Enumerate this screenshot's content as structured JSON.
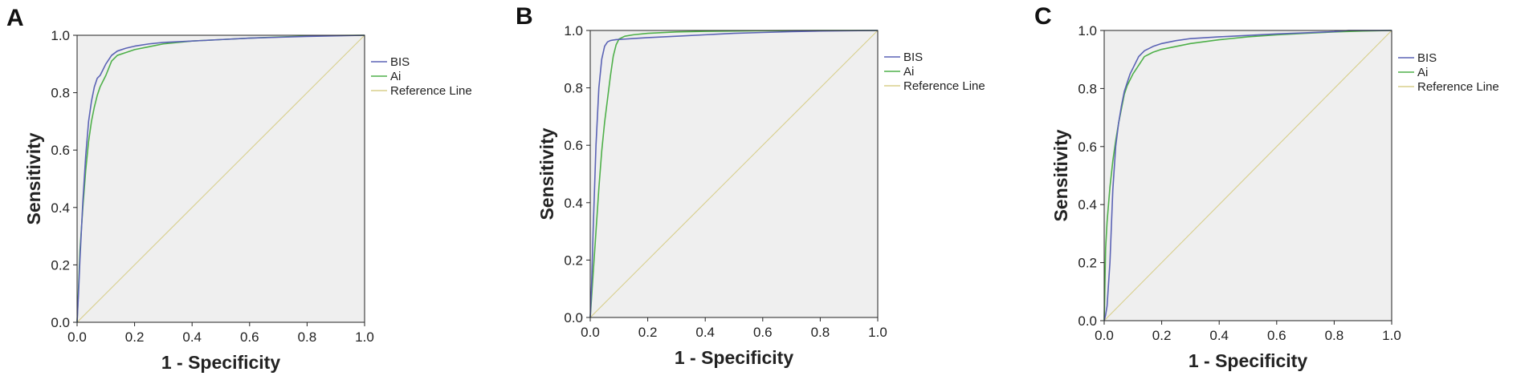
{
  "colors": {
    "plot_background": "#efefef",
    "bis": "#5b63b5",
    "ai": "#4fb04a",
    "reference": "#d8cf8c",
    "frame": "#222222"
  },
  "panels": [
    {
      "letter": "A"
    },
    {
      "letter": "B"
    },
    {
      "letter": "C"
    }
  ],
  "chart_data": [
    {
      "type": "line",
      "panel": "A",
      "xlabel": "1 - Specificity",
      "ylabel": "Sensitivity",
      "xlim": [
        0,
        1
      ],
      "ylim": [
        0,
        1
      ],
      "xticks": [
        "0.0",
        "0.2",
        "0.4",
        "0.6",
        "0.8",
        "1.0"
      ],
      "yticks": [
        "0.0",
        "0.2",
        "0.4",
        "0.6",
        "0.8",
        "1.0"
      ],
      "legend": {
        "placement": "right",
        "entries": [
          "BIS",
          "Ai",
          "Reference Line"
        ]
      },
      "series": [
        {
          "name": "BIS",
          "color": "#5b63b5",
          "x": [
            0,
            0.005,
            0.01,
            0.02,
            0.03,
            0.04,
            0.05,
            0.06,
            0.07,
            0.08,
            0.09,
            0.1,
            0.12,
            0.14,
            0.17,
            0.2,
            0.25,
            0.3,
            0.4,
            0.5,
            0.6,
            0.7,
            0.8,
            0.9,
            1
          ],
          "y": [
            0,
            0.1,
            0.22,
            0.42,
            0.58,
            0.7,
            0.77,
            0.82,
            0.85,
            0.86,
            0.88,
            0.9,
            0.93,
            0.945,
            0.955,
            0.962,
            0.97,
            0.975,
            0.98,
            0.985,
            0.99,
            0.993,
            0.996,
            0.998,
            1
          ]
        },
        {
          "name": "Ai",
          "color": "#4fb04a",
          "x": [
            0,
            0.005,
            0.01,
            0.02,
            0.03,
            0.04,
            0.05,
            0.06,
            0.07,
            0.08,
            0.09,
            0.1,
            0.12,
            0.14,
            0.17,
            0.2,
            0.25,
            0.3,
            0.4,
            0.5,
            0.6,
            0.7,
            0.8,
            0.9,
            1
          ],
          "y": [
            0,
            0.12,
            0.25,
            0.4,
            0.53,
            0.63,
            0.7,
            0.75,
            0.79,
            0.82,
            0.84,
            0.86,
            0.91,
            0.93,
            0.94,
            0.95,
            0.96,
            0.97,
            0.98,
            0.985,
            0.99,
            0.994,
            0.997,
            0.999,
            1
          ]
        },
        {
          "name": "Reference Line",
          "color": "#d8cf8c",
          "x": [
            0,
            1
          ],
          "y": [
            0,
            1
          ]
        }
      ]
    },
    {
      "type": "line",
      "panel": "B",
      "xlabel": "1 - Specificity",
      "ylabel": "Sensitivity",
      "xlim": [
        0,
        1
      ],
      "ylim": [
        0,
        1
      ],
      "xticks": [
        "0.0",
        "0.2",
        "0.4",
        "0.6",
        "0.8",
        "1.0"
      ],
      "yticks": [
        "0.0",
        "0.2",
        "0.4",
        "0.6",
        "0.8",
        "1.0"
      ],
      "legend": {
        "placement": "right",
        "entries": [
          "BIS",
          "Ai",
          "Reference Line"
        ]
      },
      "series": [
        {
          "name": "BIS",
          "color": "#5b63b5",
          "x": [
            0,
            0.005,
            0.01,
            0.015,
            0.02,
            0.03,
            0.04,
            0.05,
            0.06,
            0.07,
            0.09,
            0.12,
            0.15,
            0.2,
            0.3,
            0.4,
            0.5,
            0.6,
            0.7,
            0.8,
            0.9,
            1
          ],
          "y": [
            0,
            0.12,
            0.3,
            0.45,
            0.6,
            0.8,
            0.9,
            0.945,
            0.96,
            0.965,
            0.968,
            0.97,
            0.972,
            0.975,
            0.98,
            0.985,
            0.99,
            0.993,
            0.996,
            0.998,
            0.999,
            1
          ]
        },
        {
          "name": "Ai",
          "color": "#4fb04a",
          "x": [
            0,
            0.01,
            0.02,
            0.03,
            0.04,
            0.05,
            0.06,
            0.07,
            0.08,
            0.09,
            0.1,
            0.12,
            0.15,
            0.2,
            0.3,
            0.4,
            0.6,
            0.8,
            1
          ],
          "y": [
            0,
            0.15,
            0.3,
            0.45,
            0.58,
            0.68,
            0.76,
            0.84,
            0.91,
            0.95,
            0.97,
            0.98,
            0.985,
            0.99,
            0.995,
            0.997,
            0.999,
            1,
            1
          ]
        },
        {
          "name": "Reference Line",
          "color": "#d8cf8c",
          "x": [
            0,
            1
          ],
          "y": [
            0,
            1
          ]
        }
      ]
    },
    {
      "type": "line",
      "panel": "C",
      "xlabel": "1 - Specificity",
      "ylabel": "Sensitivity",
      "xlim": [
        0,
        1
      ],
      "ylim": [
        0,
        1
      ],
      "xticks": [
        "0.0",
        "0.2",
        "0.4",
        "0.6",
        "0.8",
        "1.0"
      ],
      "yticks": [
        "0.0",
        "0.2",
        "0.4",
        "0.6",
        "0.8",
        "1.0"
      ],
      "legend": {
        "placement": "right",
        "entries": [
          "BIS",
          "Ai",
          "Reference Line"
        ]
      },
      "series": [
        {
          "name": "BIS",
          "color": "#5b63b5",
          "x": [
            0,
            0.005,
            0.01,
            0.02,
            0.03,
            0.04,
            0.05,
            0.06,
            0.07,
            0.08,
            0.09,
            0.1,
            0.12,
            0.14,
            0.17,
            0.2,
            0.25,
            0.3,
            0.4,
            0.5,
            0.6,
            0.7,
            0.8,
            0.85,
            0.9,
            1
          ],
          "y": [
            0,
            0.02,
            0.05,
            0.2,
            0.45,
            0.6,
            0.68,
            0.74,
            0.79,
            0.82,
            0.85,
            0.87,
            0.91,
            0.93,
            0.945,
            0.955,
            0.965,
            0.972,
            0.978,
            0.983,
            0.988,
            0.992,
            0.996,
            1,
            1,
            1
          ]
        },
        {
          "name": "Ai",
          "color": "#4fb04a",
          "x": [
            0,
            0.005,
            0.01,
            0.02,
            0.03,
            0.04,
            0.05,
            0.06,
            0.07,
            0.08,
            0.09,
            0.1,
            0.12,
            0.14,
            0.17,
            0.2,
            0.25,
            0.3,
            0.4,
            0.5,
            0.6,
            0.7,
            0.8,
            0.9,
            1
          ],
          "y": [
            0,
            0.25,
            0.34,
            0.46,
            0.55,
            0.62,
            0.68,
            0.73,
            0.78,
            0.81,
            0.83,
            0.85,
            0.88,
            0.91,
            0.925,
            0.935,
            0.945,
            0.955,
            0.968,
            0.978,
            0.985,
            0.99,
            0.995,
            0.998,
            1
          ]
        },
        {
          "name": "Reference Line",
          "color": "#d8cf8c",
          "x": [
            0,
            1
          ],
          "y": [
            0,
            1
          ]
        }
      ]
    }
  ]
}
